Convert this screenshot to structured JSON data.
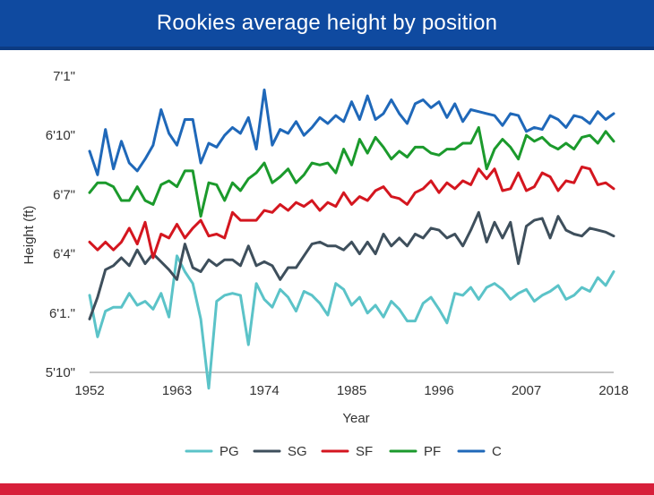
{
  "header": {
    "title": "Rookies average height by position"
  },
  "chart_data": {
    "type": "line",
    "title": "Rookies average height by position",
    "xlabel": "Year",
    "ylabel": "Height (ft)",
    "xlim": [
      1952,
      2018
    ],
    "ylim": [
      70,
      85
    ],
    "x_ticks": [
      1952,
      1963,
      1974,
      1985,
      1996,
      2007,
      2018
    ],
    "y_ticks": [
      {
        "value": 70,
        "label": "5'10\""
      },
      {
        "value": 73,
        "label": "6'1.\""
      },
      {
        "value": 76,
        "label": "6'4\""
      },
      {
        "value": 79,
        "label": "6'7\""
      },
      {
        "value": 82,
        "label": "6'10\""
      },
      {
        "value": 85,
        "label": "7'1\""
      }
    ],
    "x": [
      1952,
      1953,
      1954,
      1955,
      1956,
      1957,
      1958,
      1959,
      1960,
      1961,
      1962,
      1963,
      1964,
      1965,
      1966,
      1967,
      1968,
      1969,
      1970,
      1971,
      1972,
      1973,
      1974,
      1975,
      1976,
      1977,
      1978,
      1979,
      1980,
      1981,
      1982,
      1983,
      1984,
      1985,
      1986,
      1987,
      1988,
      1989,
      1990,
      1991,
      1992,
      1993,
      1994,
      1995,
      1996,
      1997,
      1998,
      1999,
      2000,
      2001,
      2002,
      2003,
      2004,
      2005,
      2006,
      2007,
      2008,
      2009,
      2010,
      2011,
      2012,
      2013,
      2014,
      2015,
      2016,
      2017,
      2018
    ],
    "series": [
      {
        "name": "PG",
        "color": "#5bc3c8",
        "values": [
          73.9,
          71.8,
          73.1,
          73.3,
          73.3,
          74.0,
          73.4,
          73.6,
          73.2,
          74.0,
          72.8,
          75.9,
          75.1,
          74.5,
          72.7,
          69.2,
          73.6,
          73.9,
          74.0,
          73.9,
          71.4,
          74.5,
          73.7,
          73.3,
          74.2,
          73.8,
          73.1,
          74.1,
          73.9,
          73.5,
          72.9,
          74.5,
          74.2,
          73.4,
          73.8,
          73.0,
          73.4,
          72.8,
          73.6,
          73.2,
          72.6,
          72.6,
          73.5,
          73.8,
          73.2,
          72.5,
          74.0,
          73.9,
          74.3,
          73.7,
          74.3,
          74.5,
          74.2,
          73.7,
          74.0,
          74.2,
          73.6,
          73.9,
          74.1,
          74.4,
          73.7,
          73.9,
          74.3,
          74.1,
          74.8,
          74.4,
          75.1
        ]
      },
      {
        "name": "SG",
        "color": "#3e4f5c",
        "values": [
          72.7,
          73.8,
          75.2,
          75.4,
          75.8,
          75.4,
          76.2,
          75.5,
          76.0,
          75.6,
          75.2,
          74.7,
          76.5,
          75.3,
          75.1,
          75.7,
          75.4,
          75.7,
          75.7,
          75.4,
          76.4,
          75.4,
          75.6,
          75.4,
          74.7,
          75.3,
          75.3,
          75.9,
          76.5,
          76.6,
          76.4,
          76.4,
          76.2,
          76.6,
          76.0,
          76.6,
          76.0,
          77.0,
          76.4,
          76.8,
          76.4,
          77.0,
          76.8,
          77.3,
          77.2,
          76.8,
          77.0,
          76.4,
          77.2,
          78.1,
          76.6,
          77.6,
          76.8,
          77.6,
          75.5,
          77.4,
          77.7,
          77.8,
          76.8,
          77.9,
          77.2,
          77.0,
          76.9,
          77.3,
          77.2,
          77.1,
          76.9
        ]
      },
      {
        "name": "SF",
        "color": "#d4161f",
        "values": [
          76.6,
          76.2,
          76.6,
          76.2,
          76.6,
          77.3,
          76.5,
          77.6,
          75.8,
          77.0,
          76.8,
          77.5,
          76.8,
          77.3,
          77.7,
          76.9,
          77.0,
          76.8,
          78.1,
          77.7,
          77.7,
          77.7,
          78.2,
          78.1,
          78.5,
          78.2,
          78.6,
          78.4,
          78.7,
          78.2,
          78.6,
          78.4,
          79.1,
          78.5,
          78.9,
          78.7,
          79.2,
          79.4,
          78.9,
          78.8,
          78.5,
          79.1,
          79.3,
          79.7,
          79.1,
          79.6,
          79.3,
          79.7,
          79.5,
          80.3,
          79.8,
          80.3,
          79.2,
          79.3,
          80.1,
          79.2,
          79.4,
          80.1,
          79.9,
          79.2,
          79.7,
          79.6,
          80.4,
          80.3,
          79.5,
          79.6,
          79.3
        ]
      },
      {
        "name": "PF",
        "color": "#1b9a2c",
        "values": [
          79.1,
          79.6,
          79.6,
          79.4,
          78.7,
          78.7,
          79.4,
          78.7,
          78.5,
          79.5,
          79.7,
          79.4,
          80.2,
          80.2,
          77.9,
          79.6,
          79.5,
          78.7,
          79.6,
          79.2,
          79.8,
          80.1,
          80.6,
          79.6,
          79.9,
          80.3,
          79.6,
          80.0,
          80.6,
          80.5,
          80.6,
          80.1,
          81.3,
          80.5,
          81.8,
          81.1,
          81.9,
          81.4,
          80.8,
          81.2,
          80.9,
          81.4,
          81.4,
          81.1,
          81.0,
          81.3,
          81.3,
          81.6,
          81.6,
          82.4,
          80.3,
          81.3,
          81.8,
          81.4,
          80.8,
          82.0,
          81.7,
          81.9,
          81.5,
          81.3,
          81.6,
          81.3,
          81.9,
          82.0,
          81.6,
          82.2,
          81.7
        ]
      },
      {
        "name": "C",
        "color": "#1f68b9",
        "values": [
          81.2,
          80.0,
          82.3,
          80.3,
          81.7,
          80.6,
          80.2,
          80.8,
          81.5,
          83.3,
          82.1,
          81.5,
          82.8,
          82.8,
          80.6,
          81.6,
          81.4,
          82.0,
          82.4,
          82.1,
          82.9,
          81.3,
          84.3,
          81.5,
          82.3,
          82.1,
          82.7,
          82.0,
          82.4,
          82.9,
          82.6,
          83.0,
          82.7,
          83.7,
          82.8,
          84.0,
          82.8,
          83.1,
          83.8,
          83.1,
          82.6,
          83.6,
          83.8,
          83.4,
          83.7,
          82.9,
          83.6,
          82.7,
          83.3,
          83.2,
          83.1,
          83.0,
          82.5,
          83.1,
          83.0,
          82.2,
          82.4,
          82.3,
          83.0,
          82.8,
          82.4,
          83.0,
          82.9,
          82.6,
          83.2,
          82.8,
          83.1
        ]
      }
    ],
    "legend_position": "bottom",
    "grid": false
  }
}
